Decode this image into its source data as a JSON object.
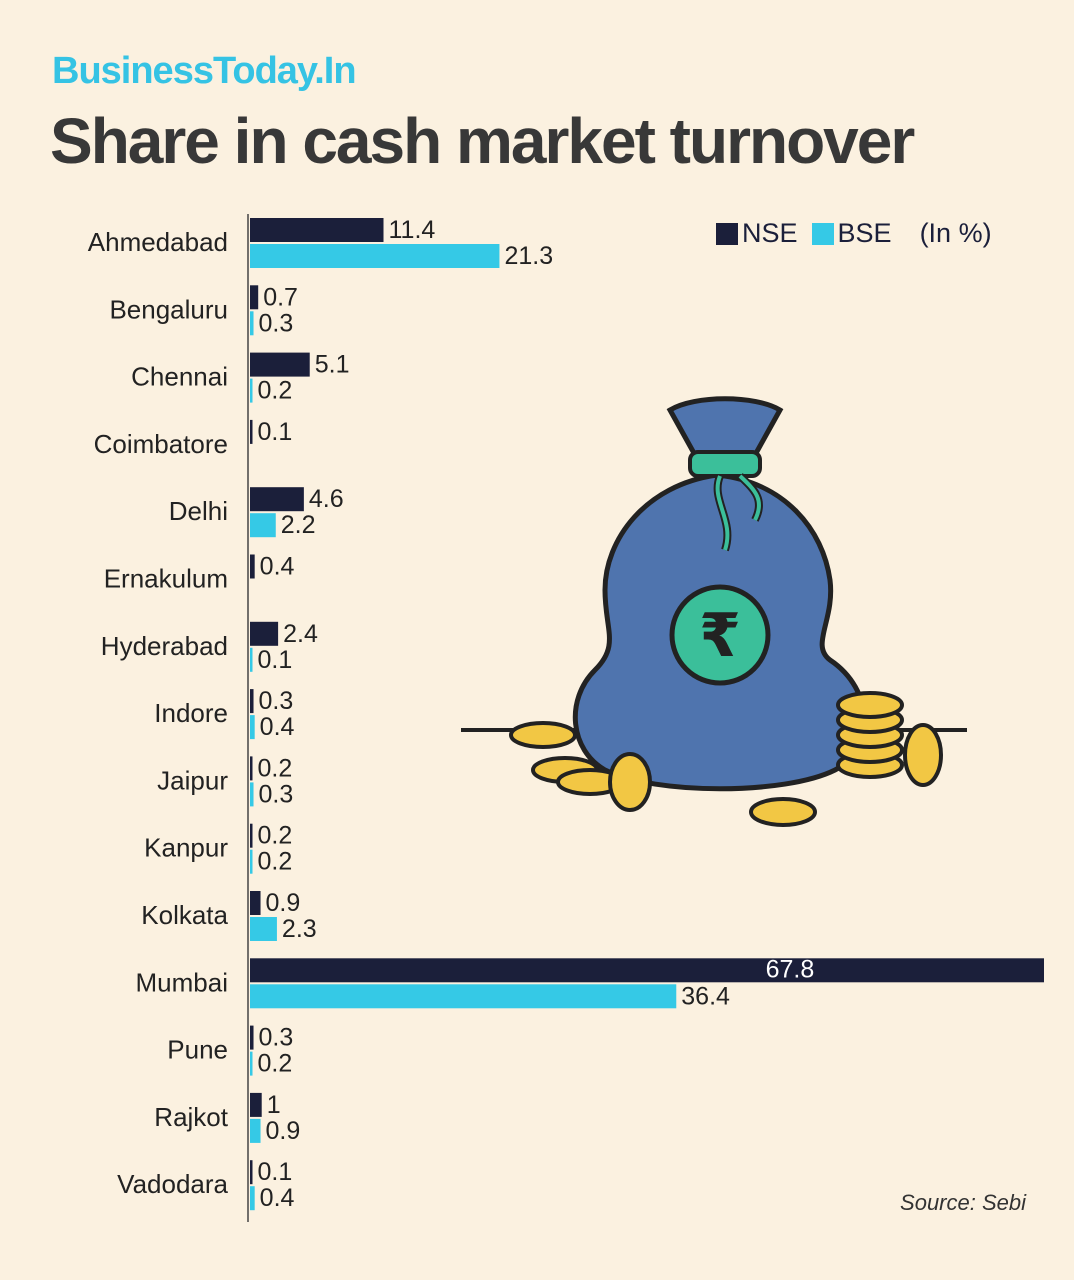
{
  "brand": "BusinessToday.In",
  "title": "Share in cash market turnover",
  "legend": {
    "nse": "NSE",
    "bse": "BSE",
    "unit": "(In %)"
  },
  "source": "Source: Sebi",
  "colors": {
    "nse": "#1b1f3a",
    "bse": "#35c9e6",
    "background": "#fbf1e0"
  },
  "illustration": {
    "icon": "money-bag-rupee-icon"
  },
  "chart_data": {
    "type": "bar",
    "orientation": "horizontal",
    "title": "Share in cash market turnover",
    "unit": "%",
    "categories": [
      "Ahmedabad",
      "Bengaluru",
      "Chennai",
      "Coimbatore",
      "Delhi",
      "Ernakulum",
      "Hyderabad",
      "Indore",
      "Jaipur",
      "Kanpur",
      "Kolkata",
      "Mumbai",
      "Pune",
      "Rajkot",
      "Vadodara"
    ],
    "series": [
      {
        "name": "NSE",
        "values": [
          11.4,
          0.7,
          5.1,
          0.1,
          4.6,
          0.4,
          2.4,
          0.3,
          0.2,
          0.2,
          0.9,
          67.8,
          0.3,
          1,
          0.1
        ],
        "labels": [
          "11.4",
          "0.7",
          "5.1",
          "0.1",
          "4.6",
          "0.4",
          "2.4",
          "0.3",
          "0.2",
          "0.2",
          "0.9",
          "67.8",
          "0.3",
          "1",
          "0.1"
        ]
      },
      {
        "name": "BSE",
        "values": [
          21.3,
          0.3,
          0.2,
          null,
          2.2,
          null,
          0.1,
          0.4,
          0.3,
          0.2,
          2.3,
          36.4,
          0.2,
          0.9,
          0.4
        ],
        "labels": [
          "21.3",
          "0.3",
          "0.2",
          null,
          "2.2",
          null,
          "0.1",
          "0.4",
          "0.3",
          "0.2",
          "2.3",
          "36.4",
          "0.2",
          "0.9",
          "0.4"
        ]
      }
    ],
    "xlim": [
      0,
      67.8
    ],
    "legend_position": "top-right"
  }
}
